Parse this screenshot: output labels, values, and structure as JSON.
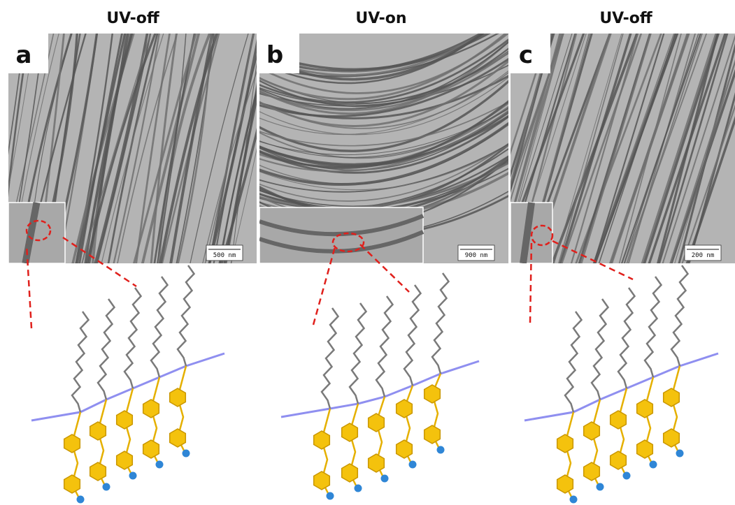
{
  "panels": [
    {
      "title": "UV-off",
      "label": "a",
      "scale_bar": "500 nm"
    },
    {
      "title": "UV-on",
      "label": "b",
      "scale_bar": "900 nm"
    },
    {
      "title": "UV-off",
      "label": "c",
      "scale_bar": "200 nm"
    }
  ]
}
